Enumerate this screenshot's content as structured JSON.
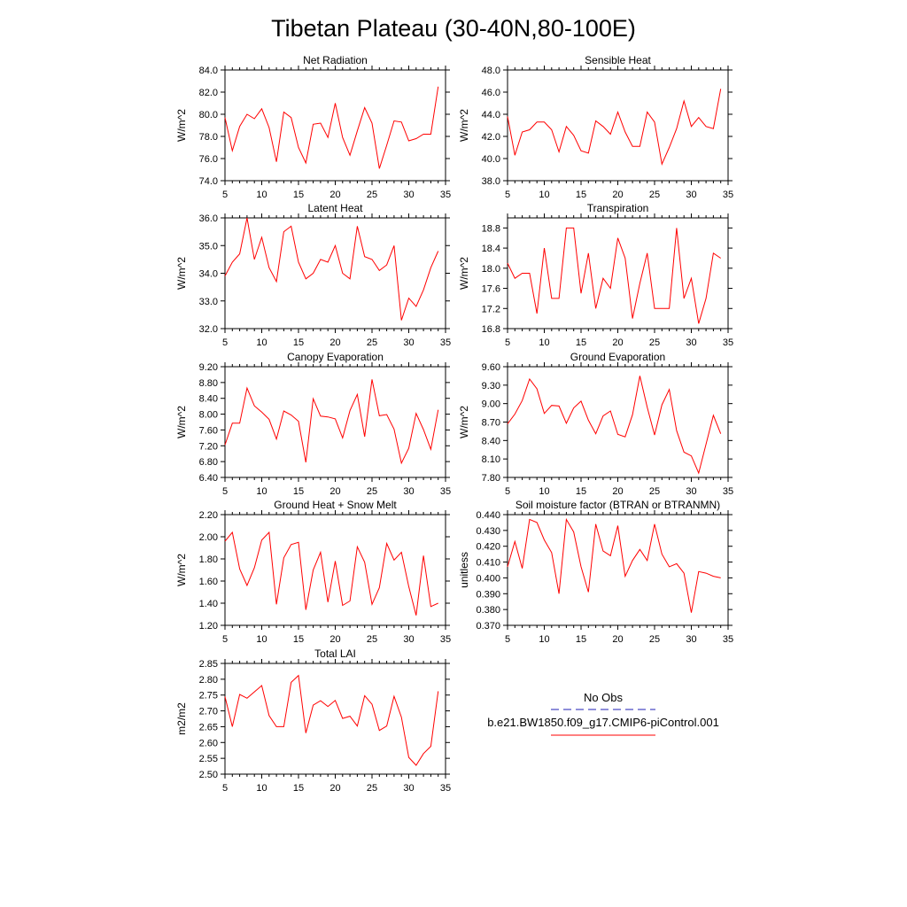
{
  "figure": {
    "title": "Tibetan Plateau (30-40N,80-100E)",
    "legend": {
      "entries": [
        {
          "label": "No Obs",
          "line_color": "#1f1fb4",
          "dashed": true
        },
        {
          "label": "b.e21.BW1850.f09_g17.CMIP6-piControl.001",
          "line_color": "#ff0000",
          "dashed": false
        }
      ]
    }
  },
  "chart_data": [
    {
      "type": "line",
      "title": "Net Radiation",
      "xlabel": "",
      "ylabel": "W/m^2",
      "xlim": [
        5,
        35
      ],
      "ylim": [
        74.0,
        84.0
      ],
      "xticks": [
        5,
        10,
        15,
        20,
        25,
        30,
        35
      ],
      "yticks": [
        74.0,
        76.0,
        78.0,
        80.0,
        82.0,
        84.0
      ],
      "ytick_decimals": 1,
      "series": [
        {
          "color": "#ff0000",
          "x": [
            5,
            6,
            7,
            8,
            9,
            10,
            11,
            12,
            13,
            14,
            15,
            16,
            17,
            18,
            19,
            20,
            21,
            22,
            23,
            24,
            25,
            26,
            27,
            28,
            29,
            30,
            31,
            32,
            33,
            34
          ],
          "values": [
            79.7,
            76.7,
            78.9,
            80.0,
            79.6,
            80.5,
            78.8,
            75.7,
            80.2,
            79.7,
            77.0,
            75.6,
            79.1,
            79.2,
            77.9,
            81.0,
            77.9,
            76.3,
            78.5,
            80.6,
            79.2,
            75.1,
            77.2,
            79.4,
            79.3,
            77.6,
            77.8,
            78.2,
            78.2,
            82.5
          ]
        }
      ]
    },
    {
      "type": "line",
      "title": "Sensible Heat",
      "xlabel": "",
      "ylabel": "W/m^2",
      "xlim": [
        5,
        35
      ],
      "ylim": [
        38.0,
        48.0
      ],
      "xticks": [
        5,
        10,
        15,
        20,
        25,
        30,
        35
      ],
      "yticks": [
        38.0,
        40.0,
        42.0,
        44.0,
        46.0,
        48.0
      ],
      "ytick_decimals": 1,
      "series": [
        {
          "color": "#ff0000",
          "x": [
            5,
            6,
            7,
            8,
            9,
            10,
            11,
            12,
            13,
            14,
            15,
            16,
            17,
            18,
            19,
            20,
            21,
            22,
            23,
            24,
            25,
            26,
            27,
            28,
            29,
            30,
            31,
            32,
            33,
            34
          ],
          "values": [
            43.8,
            40.3,
            42.4,
            42.6,
            43.3,
            43.3,
            42.6,
            40.6,
            42.9,
            42.1,
            40.7,
            40.5,
            43.4,
            42.9,
            42.2,
            44.2,
            42.4,
            41.1,
            41.1,
            44.2,
            43.3,
            39.5,
            41.0,
            42.7,
            45.2,
            42.9,
            43.7,
            42.9,
            42.7,
            46.3
          ]
        }
      ]
    },
    {
      "type": "line",
      "title": "Latent Heat",
      "xlabel": "",
      "ylabel": "W/m^2",
      "xlim": [
        5,
        35
      ],
      "ylim": [
        32.0,
        36.0
      ],
      "xticks": [
        5,
        10,
        15,
        20,
        25,
        30,
        35
      ],
      "yticks": [
        32.0,
        33.0,
        34.0,
        35.0,
        36.0
      ],
      "ytick_decimals": 1,
      "series": [
        {
          "color": "#ff0000",
          "x": [
            5,
            6,
            7,
            8,
            9,
            10,
            11,
            12,
            13,
            14,
            15,
            16,
            17,
            18,
            19,
            20,
            21,
            22,
            23,
            24,
            25,
            26,
            27,
            28,
            29,
            30,
            31,
            32,
            33,
            34
          ],
          "values": [
            33.9,
            34.4,
            34.7,
            36.0,
            34.5,
            35.3,
            34.2,
            33.7,
            35.5,
            35.7,
            34.4,
            33.8,
            34.0,
            34.5,
            34.4,
            35.0,
            34.0,
            33.8,
            35.7,
            34.6,
            34.5,
            34.1,
            34.3,
            35.0,
            32.3,
            33.1,
            32.8,
            33.4,
            34.2,
            34.8
          ]
        }
      ]
    },
    {
      "type": "line",
      "title": "Transpiration",
      "xlabel": "",
      "ylabel": "W/m^2",
      "xlim": [
        5,
        35
      ],
      "ylim": [
        16.8,
        19.0
      ],
      "xticks": [
        5,
        10,
        15,
        20,
        25,
        30,
        35
      ],
      "yticks": [
        16.8,
        17.2,
        17.6,
        18.0,
        18.4,
        18.8
      ],
      "ytick_decimals": 1,
      "series": [
        {
          "color": "#ff0000",
          "x": [
            5,
            6,
            7,
            8,
            9,
            10,
            11,
            12,
            13,
            14,
            15,
            16,
            17,
            18,
            19,
            20,
            21,
            22,
            23,
            24,
            25,
            26,
            27,
            28,
            29,
            30,
            31,
            32,
            33,
            34
          ],
          "values": [
            18.1,
            17.8,
            17.9,
            17.9,
            17.1,
            18.4,
            17.4,
            17.4,
            18.8,
            18.8,
            17.5,
            18.3,
            17.2,
            17.8,
            17.6,
            18.6,
            18.2,
            17.0,
            17.7,
            18.3,
            17.2,
            17.2,
            17.2,
            18.8,
            17.4,
            17.8,
            16.9,
            17.4,
            18.3,
            18.2
          ]
        }
      ]
    },
    {
      "type": "line",
      "title": "Canopy Evaporation",
      "xlabel": "",
      "ylabel": "W/m^2",
      "xlim": [
        5,
        35
      ],
      "ylim": [
        6.4,
        9.2
      ],
      "xticks": [
        5,
        10,
        15,
        20,
        25,
        30,
        35
      ],
      "yticks": [
        6.4,
        6.8,
        7.2,
        7.6,
        8.0,
        8.4,
        8.8,
        9.2
      ],
      "ytick_decimals": 2,
      "series": [
        {
          "color": "#ff0000",
          "x": [
            5,
            6,
            7,
            8,
            9,
            10,
            11,
            12,
            13,
            14,
            15,
            16,
            17,
            18,
            19,
            20,
            21,
            22,
            23,
            24,
            25,
            26,
            27,
            28,
            29,
            30,
            31,
            32,
            33,
            34
          ],
          "values": [
            7.22,
            7.77,
            7.77,
            8.66,
            8.21,
            8.05,
            7.87,
            7.37,
            8.08,
            7.98,
            7.82,
            6.78,
            8.39,
            7.95,
            7.93,
            7.88,
            7.4,
            8.09,
            8.5,
            7.43,
            8.88,
            7.96,
            7.99,
            7.62,
            6.76,
            7.14,
            8.02,
            7.61,
            7.11,
            8.11
          ]
        }
      ]
    },
    {
      "type": "line",
      "title": "Ground Evaporation",
      "xlabel": "",
      "ylabel": "W/m^2",
      "xlim": [
        5,
        35
      ],
      "ylim": [
        7.8,
        9.6
      ],
      "xticks": [
        5,
        10,
        15,
        20,
        25,
        30,
        35
      ],
      "yticks": [
        7.8,
        8.1,
        8.4,
        8.7,
        9.0,
        9.3,
        9.6
      ],
      "ytick_decimals": 2,
      "series": [
        {
          "color": "#ff0000",
          "x": [
            5,
            6,
            7,
            8,
            9,
            10,
            11,
            12,
            13,
            14,
            15,
            16,
            17,
            18,
            19,
            20,
            21,
            22,
            23,
            24,
            25,
            26,
            27,
            28,
            29,
            30,
            31,
            32,
            33,
            34
          ],
          "values": [
            8.67,
            8.83,
            9.05,
            9.4,
            9.24,
            8.84,
            8.97,
            8.96,
            8.68,
            8.93,
            9.04,
            8.73,
            8.51,
            8.8,
            8.88,
            8.5,
            8.46,
            8.82,
            9.45,
            8.94,
            8.49,
            8.98,
            9.23,
            8.56,
            8.21,
            8.15,
            7.87,
            8.34,
            8.81,
            8.51
          ]
        }
      ]
    },
    {
      "type": "line",
      "title": "Ground Heat + Snow Melt",
      "xlabel": "",
      "ylabel": "W/m^2",
      "xlim": [
        5,
        35
      ],
      "ylim": [
        1.2,
        2.2
      ],
      "xticks": [
        5,
        10,
        15,
        20,
        25,
        30,
        35
      ],
      "yticks": [
        1.2,
        1.4,
        1.6,
        1.8,
        2.0,
        2.2
      ],
      "ytick_decimals": 2,
      "series": [
        {
          "color": "#ff0000",
          "x": [
            5,
            6,
            7,
            8,
            9,
            10,
            11,
            12,
            13,
            14,
            15,
            16,
            17,
            18,
            19,
            20,
            21,
            22,
            23,
            24,
            25,
            26,
            27,
            28,
            29,
            30,
            31,
            32,
            33,
            34
          ],
          "values": [
            1.96,
            2.04,
            1.71,
            1.56,
            1.72,
            1.97,
            2.04,
            1.39,
            1.81,
            1.93,
            1.95,
            1.34,
            1.7,
            1.86,
            1.41,
            1.78,
            1.38,
            1.42,
            1.91,
            1.77,
            1.39,
            1.54,
            1.94,
            1.79,
            1.86,
            1.55,
            1.29,
            1.83,
            1.37,
            1.4
          ]
        }
      ]
    },
    {
      "type": "line",
      "title": "Soil moisture factor (BTRAN or BTRANMN)",
      "xlabel": "",
      "ylabel": "unitless",
      "xlim": [
        5,
        35
      ],
      "ylim": [
        0.37,
        0.44
      ],
      "xticks": [
        5,
        10,
        15,
        20,
        25,
        30,
        35
      ],
      "yticks": [
        0.37,
        0.38,
        0.39,
        0.4,
        0.41,
        0.42,
        0.43,
        0.44
      ],
      "ytick_decimals": 3,
      "series": [
        {
          "color": "#ff0000",
          "x": [
            5,
            6,
            7,
            8,
            9,
            10,
            11,
            12,
            13,
            14,
            15,
            16,
            17,
            18,
            19,
            20,
            21,
            22,
            23,
            24,
            25,
            26,
            27,
            28,
            29,
            30,
            31,
            32,
            33,
            34
          ],
          "values": [
            0.407,
            0.423,
            0.406,
            0.437,
            0.435,
            0.424,
            0.416,
            0.39,
            0.437,
            0.429,
            0.407,
            0.391,
            0.434,
            0.417,
            0.414,
            0.433,
            0.401,
            0.411,
            0.418,
            0.411,
            0.434,
            0.415,
            0.407,
            0.409,
            0.403,
            0.378,
            0.404,
            0.403,
            0.401,
            0.4
          ]
        }
      ]
    },
    {
      "type": "line",
      "title": "Total LAI",
      "xlabel": "",
      "ylabel": "m2/m2",
      "xlim": [
        5,
        35
      ],
      "ylim": [
        2.5,
        2.85
      ],
      "xticks": [
        5,
        10,
        15,
        20,
        25,
        30,
        35
      ],
      "yticks": [
        2.5,
        2.55,
        2.6,
        2.65,
        2.7,
        2.75,
        2.8,
        2.85
      ],
      "ytick_decimals": 2,
      "series": [
        {
          "color": "#ff0000",
          "x": [
            5,
            6,
            7,
            8,
            9,
            10,
            11,
            12,
            13,
            14,
            15,
            16,
            17,
            18,
            19,
            20,
            21,
            22,
            23,
            24,
            25,
            26,
            27,
            28,
            29,
            30,
            31,
            32,
            33,
            34
          ],
          "values": [
            2.745,
            2.65,
            2.752,
            2.74,
            2.76,
            2.78,
            2.685,
            2.65,
            2.65,
            2.79,
            2.812,
            2.63,
            2.718,
            2.732,
            2.714,
            2.733,
            2.676,
            2.683,
            2.652,
            2.748,
            2.721,
            2.638,
            2.652,
            2.746,
            2.68,
            2.553,
            2.528,
            2.565,
            2.588,
            2.762
          ]
        }
      ]
    }
  ]
}
